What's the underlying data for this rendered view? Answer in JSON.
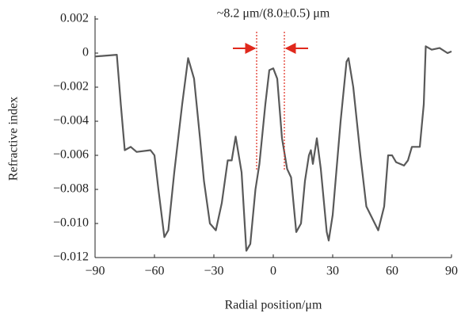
{
  "chart_data": {
    "type": "line",
    "annotation": "~8.2 μm/(8.0±0.5) μm",
    "xlabel": "Radial position/μm",
    "ylabel": "Refractive index",
    "color": "#595959",
    "marker_color": "#e0281c",
    "markers": [
      -8.4,
      5.6
    ],
    "x": [
      -90,
      -79,
      -77,
      -75,
      -72,
      -69,
      -62,
      -60,
      -58,
      -55,
      -53,
      -50,
      -46,
      -43,
      -40,
      -37,
      -35,
      -32,
      -29,
      -26,
      -23,
      -21,
      -19,
      -16,
      -13.6,
      -11.6,
      -9,
      -7,
      -4,
      -2,
      0,
      2,
      4.4,
      7,
      9,
      11.6,
      14,
      16,
      18,
      19,
      20,
      22,
      24,
      27,
      28,
      30,
      34,
      37,
      38,
      40.4,
      44,
      47,
      53,
      56,
      58,
      60,
      62,
      66,
      68,
      70,
      74,
      76,
      77,
      80,
      84,
      88,
      90
    ],
    "values": [
      -0.0002,
      -0.0001,
      -0.003,
      -0.0057,
      -0.0055,
      -0.0058,
      -0.0057,
      -0.006,
      -0.008,
      -0.0108,
      -0.0104,
      -0.007,
      -0.003,
      -0.0003,
      -0.0015,
      -0.005,
      -0.0075,
      -0.01,
      -0.0104,
      -0.0088,
      -0.0063,
      -0.0063,
      -0.0049,
      -0.007,
      -0.0116,
      -0.0112,
      -0.008,
      -0.0065,
      -0.003,
      -0.001,
      -0.0009,
      -0.0015,
      -0.005,
      -0.0068,
      -0.0073,
      -0.0105,
      -0.01,
      -0.0075,
      -0.006,
      -0.0057,
      -0.0065,
      -0.005,
      -0.0068,
      -0.0105,
      -0.011,
      -0.0095,
      -0.004,
      -0.0005,
      -0.0003,
      -0.002,
      -0.006,
      -0.009,
      -0.0104,
      -0.009,
      -0.006,
      -0.006,
      -0.0064,
      -0.0066,
      -0.0063,
      -0.0055,
      -0.0055,
      -0.003,
      0.0004,
      0.0002,
      0.0003,
      0,
      0.0001
    ],
    "xlim": [
      -90,
      90
    ],
    "xticks": [
      {
        "value": -90,
        "label": "−90"
      },
      {
        "value": -60,
        "label": "−60"
      },
      {
        "value": -30,
        "label": "−30"
      },
      0,
      30,
      60,
      90
    ],
    "ylim": [
      -0.012,
      0.002
    ],
    "yticks": [
      0.002,
      0,
      {
        "value": -0.002,
        "label": "−0.002"
      },
      {
        "value": -0.004,
        "label": "−0.004"
      },
      {
        "value": -0.006,
        "label": "−0.006"
      },
      {
        "value": -0.008,
        "label": "−0.008"
      },
      {
        "value": -0.01,
        "label": "−0.010"
      },
      {
        "value": -0.012,
        "label": "−0.012"
      }
    ],
    "grid": false
  }
}
